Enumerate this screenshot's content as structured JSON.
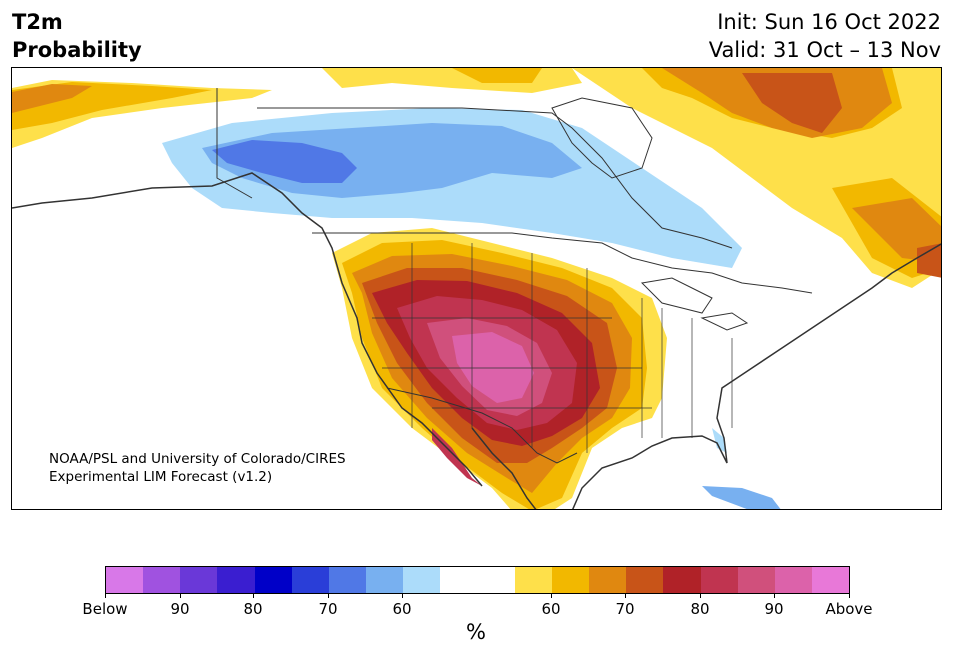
{
  "title": {
    "line1": "T2m",
    "line2": "Probability"
  },
  "validity": {
    "init": "Init: Sun 16 Oct 2022",
    "valid": "Valid: 31 Oct – 13 Nov"
  },
  "credit": {
    "line1": "NOAA/PSL and University of Colorado/CIRES",
    "line2": "Experimental LIM Forecast (v1.2)"
  },
  "colorbar": {
    "colors": [
      "#d878e8",
      "#a052e0",
      "#6a38d8",
      "#3a1ed0",
      "#0000c8",
      "#2a3ed8",
      "#5078e6",
      "#78b0f0",
      "#acdcfa",
      "#ffffff",
      "#ffffff",
      "#fee04a",
      "#f2b800",
      "#e08810",
      "#c85418",
      "#b02228",
      "#c03450",
      "#d0507c",
      "#dc62aa",
      "#e878d8"
    ],
    "tick_labels": [
      "Below",
      "90",
      "80",
      "70",
      "60",
      "60",
      "70",
      "80",
      "90",
      "Above"
    ],
    "unit": "%"
  },
  "map": {
    "region": "North America",
    "colors": {
      "cold_60": "#acdcfa",
      "cold_70": "#78b0f0",
      "cold_80": "#5078e6",
      "warm_60": "#fee04a",
      "warm_70": "#f2b800",
      "warm_75": "#e08810",
      "warm_80": "#c85418",
      "warm_85": "#b02228",
      "warm_90": "#c03450",
      "warm_95": "#d0507c",
      "warm_above": "#dc62aa",
      "land_line": "#333333",
      "background": "#ffffff"
    }
  }
}
